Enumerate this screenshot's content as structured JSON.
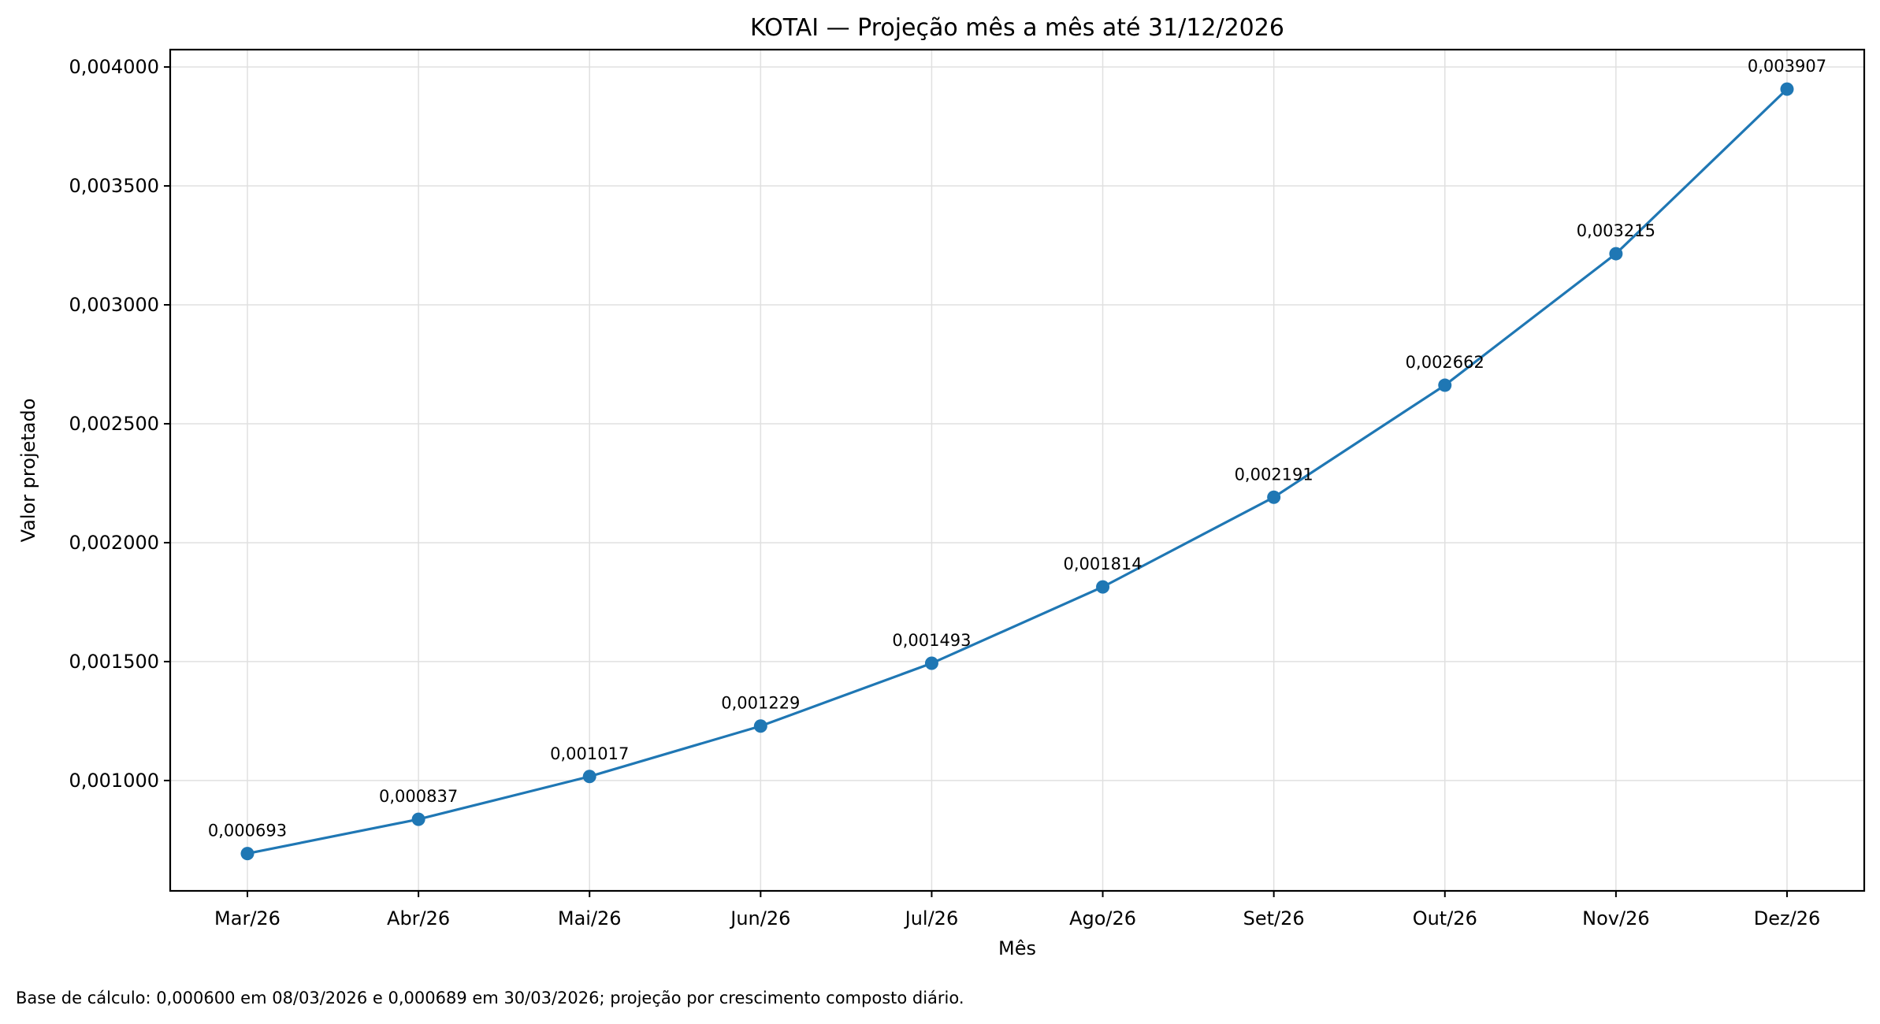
{
  "chart_data": {
    "type": "line",
    "title": "KOTAI — Projeção mês a mês até 31/12/2026",
    "xlabel": "Mês",
    "ylabel": "Valor projetado",
    "categories": [
      "Mar/26",
      "Abr/26",
      "Mai/26",
      "Jun/26",
      "Jul/26",
      "Ago/26",
      "Set/26",
      "Out/26",
      "Nov/26",
      "Dez/26"
    ],
    "series": [
      {
        "name": "Valor projetado",
        "color": "#1f77b4",
        "values": [
          0.000693,
          0.000837,
          0.001017,
          0.001229,
          0.001493,
          0.001814,
          0.002191,
          0.002662,
          0.003215,
          0.003907
        ],
        "labels": [
          "0,000693",
          "0,000837",
          "0,001017",
          "0,001229",
          "0,001493",
          "0,001814",
          "0,002191",
          "0,002662",
          "0,003215",
          "0,003907"
        ]
      }
    ],
    "yticks": [
      0.001,
      0.0015,
      0.002,
      0.0025,
      0.003,
      0.0035,
      0.004
    ],
    "ytick_labels": [
      "0,001000",
      "0,001500",
      "0,002000",
      "0,002500",
      "0,003000",
      "0,003500",
      "0,004000"
    ],
    "ylim": [
      0.000536,
      0.004073
    ],
    "grid": true,
    "legend": null,
    "footnote": "Base de cálculo: 0,000600 em 08/03/2026 e 0,000689 em 30/03/2026; projeção por crescimento composto diário."
  }
}
